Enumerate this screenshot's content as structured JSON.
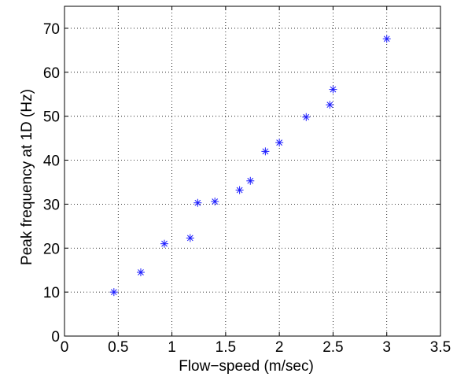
{
  "chart_data": {
    "type": "scatter",
    "title": "",
    "xlabel": "Flow−speed (m/sec)",
    "ylabel": "Peak frequency at 1D (Hz)",
    "xlim": [
      0,
      3.5
    ],
    "ylim": [
      0,
      75
    ],
    "xticks": [
      0,
      0.5,
      1,
      1.5,
      2,
      2.5,
      3,
      3.5
    ],
    "xtick_labels": [
      "0",
      "0.5",
      "1",
      "1.5",
      "2",
      "2.5",
      "3",
      "3.5"
    ],
    "yticks": [
      0,
      10,
      20,
      30,
      40,
      50,
      60,
      70
    ],
    "ytick_labels": [
      "0",
      "10",
      "20",
      "30",
      "40",
      "50",
      "60",
      "70"
    ],
    "grid": true,
    "marker": "asterisk",
    "marker_color": "#1a1aff",
    "points": [
      {
        "x": 0.46,
        "y": 10.0
      },
      {
        "x": 0.71,
        "y": 14.5
      },
      {
        "x": 0.93,
        "y": 21.0
      },
      {
        "x": 1.17,
        "y": 22.3
      },
      {
        "x": 1.24,
        "y": 30.3
      },
      {
        "x": 1.4,
        "y": 30.6
      },
      {
        "x": 1.63,
        "y": 33.2
      },
      {
        "x": 1.73,
        "y": 35.3
      },
      {
        "x": 1.87,
        "y": 42.0
      },
      {
        "x": 2.0,
        "y": 44.0
      },
      {
        "x": 2.25,
        "y": 49.8
      },
      {
        "x": 2.47,
        "y": 52.6
      },
      {
        "x": 2.5,
        "y": 56.1
      },
      {
        "x": 3.0,
        "y": 67.6
      }
    ]
  }
}
